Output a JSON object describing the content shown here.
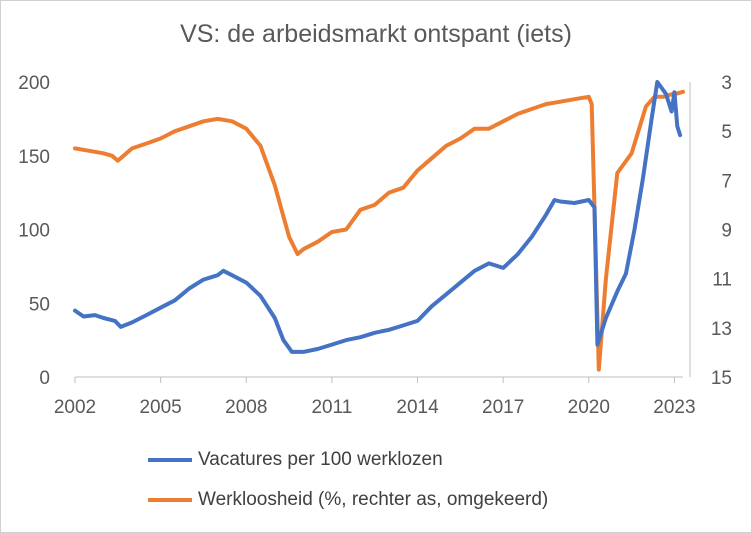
{
  "title": "VS: de arbeidsmarkt ontspant (iets)",
  "colors": {
    "vacancies": "#4472C4",
    "unemployment": "#ED7D31",
    "axis": "#bfbfbf",
    "text": "#595959"
  },
  "chart_data": {
    "type": "line",
    "title": "VS: de arbeidsmarkt ontspant (iets)",
    "xlim": [
      2002,
      2023.3
    ],
    "x_ticks": [
      "2002",
      "2005",
      "2008",
      "2011",
      "2014",
      "2017",
      "2020",
      "2023"
    ],
    "y_left": {
      "lim": [
        0,
        200
      ],
      "ticks": [
        "0",
        "50",
        "100",
        "150",
        "200"
      ]
    },
    "y_right": {
      "lim": [
        3,
        15
      ],
      "reversed": true,
      "ticks": [
        "3",
        "5",
        "7",
        "9",
        "11",
        "13",
        "15"
      ]
    },
    "grid": false,
    "legend_position": "bottom",
    "series": [
      {
        "name": "Vacatures per 100 werklozen",
        "axis": "left",
        "color": "#4472C4",
        "points": [
          [
            2002.0,
            45
          ],
          [
            2002.3,
            41
          ],
          [
            2002.7,
            42
          ],
          [
            2003.0,
            40
          ],
          [
            2003.4,
            38
          ],
          [
            2003.6,
            34
          ],
          [
            2004.0,
            37
          ],
          [
            2004.5,
            42
          ],
          [
            2005.0,
            47
          ],
          [
            2005.5,
            52
          ],
          [
            2006.0,
            60
          ],
          [
            2006.5,
            66
          ],
          [
            2007.0,
            69
          ],
          [
            2007.2,
            72
          ],
          [
            2007.5,
            69
          ],
          [
            2008.0,
            64
          ],
          [
            2008.5,
            55
          ],
          [
            2009.0,
            40
          ],
          [
            2009.3,
            25
          ],
          [
            2009.6,
            17
          ],
          [
            2010.0,
            17
          ],
          [
            2010.5,
            19
          ],
          [
            2011.0,
            22
          ],
          [
            2011.5,
            25
          ],
          [
            2012.0,
            27
          ],
          [
            2012.5,
            30
          ],
          [
            2013.0,
            32
          ],
          [
            2013.5,
            35
          ],
          [
            2014.0,
            38
          ],
          [
            2014.5,
            48
          ],
          [
            2015.0,
            56
          ],
          [
            2015.5,
            64
          ],
          [
            2016.0,
            72
          ],
          [
            2016.5,
            77
          ],
          [
            2017.0,
            74
          ],
          [
            2017.5,
            83
          ],
          [
            2018.0,
            95
          ],
          [
            2018.5,
            110
          ],
          [
            2018.8,
            120
          ],
          [
            2019.0,
            119
          ],
          [
            2019.5,
            118
          ],
          [
            2020.0,
            120
          ],
          [
            2020.2,
            115
          ],
          [
            2020.3,
            22
          ],
          [
            2020.6,
            40
          ],
          [
            2021.0,
            58
          ],
          [
            2021.3,
            70
          ],
          [
            2021.6,
            100
          ],
          [
            2021.9,
            135
          ],
          [
            2022.2,
            175
          ],
          [
            2022.4,
            200
          ],
          [
            2022.7,
            192
          ],
          [
            2022.9,
            180
          ],
          [
            2023.0,
            193
          ],
          [
            2023.1,
            170
          ],
          [
            2023.2,
            164
          ]
        ]
      },
      {
        "name": "Werkloosheid (%, rechter as, omgekeerd)",
        "axis": "right",
        "color": "#ED7D31",
        "points": [
          [
            2002.0,
            5.7
          ],
          [
            2002.5,
            5.8
          ],
          [
            2003.0,
            5.9
          ],
          [
            2003.3,
            6.0
          ],
          [
            2003.5,
            6.2
          ],
          [
            2004.0,
            5.7
          ],
          [
            2004.5,
            5.5
          ],
          [
            2005.0,
            5.3
          ],
          [
            2005.5,
            5.0
          ],
          [
            2006.0,
            4.8
          ],
          [
            2006.5,
            4.6
          ],
          [
            2007.0,
            4.5
          ],
          [
            2007.5,
            4.6
          ],
          [
            2008.0,
            4.9
          ],
          [
            2008.5,
            5.6
          ],
          [
            2009.0,
            7.2
          ],
          [
            2009.5,
            9.3
          ],
          [
            2009.8,
            10.0
          ],
          [
            2010.0,
            9.8
          ],
          [
            2010.5,
            9.5
          ],
          [
            2011.0,
            9.1
          ],
          [
            2011.5,
            9.0
          ],
          [
            2012.0,
            8.2
          ],
          [
            2012.5,
            8.0
          ],
          [
            2013.0,
            7.5
          ],
          [
            2013.5,
            7.3
          ],
          [
            2014.0,
            6.6
          ],
          [
            2014.5,
            6.1
          ],
          [
            2015.0,
            5.6
          ],
          [
            2015.5,
            5.3
          ],
          [
            2016.0,
            4.9
          ],
          [
            2016.5,
            4.9
          ],
          [
            2017.0,
            4.6
          ],
          [
            2017.5,
            4.3
          ],
          [
            2018.0,
            4.1
          ],
          [
            2018.5,
            3.9
          ],
          [
            2019.0,
            3.8
          ],
          [
            2019.5,
            3.7
          ],
          [
            2020.0,
            3.6
          ],
          [
            2020.1,
            3.9
          ],
          [
            2020.35,
            14.7
          ],
          [
            2020.6,
            11.0
          ],
          [
            2021.0,
            6.7
          ],
          [
            2021.5,
            5.9
          ],
          [
            2022.0,
            4.0
          ],
          [
            2022.3,
            3.6
          ],
          [
            2022.6,
            3.6
          ],
          [
            2022.9,
            3.5
          ],
          [
            2023.0,
            3.5
          ],
          [
            2023.3,
            3.4
          ]
        ]
      }
    ]
  },
  "legend": [
    {
      "label": "Vacatures per 100 werklozen",
      "color": "#4472C4"
    },
    {
      "label": "Werkloosheid (%, rechter as, omgekeerd)",
      "color": "#ED7D31"
    }
  ]
}
